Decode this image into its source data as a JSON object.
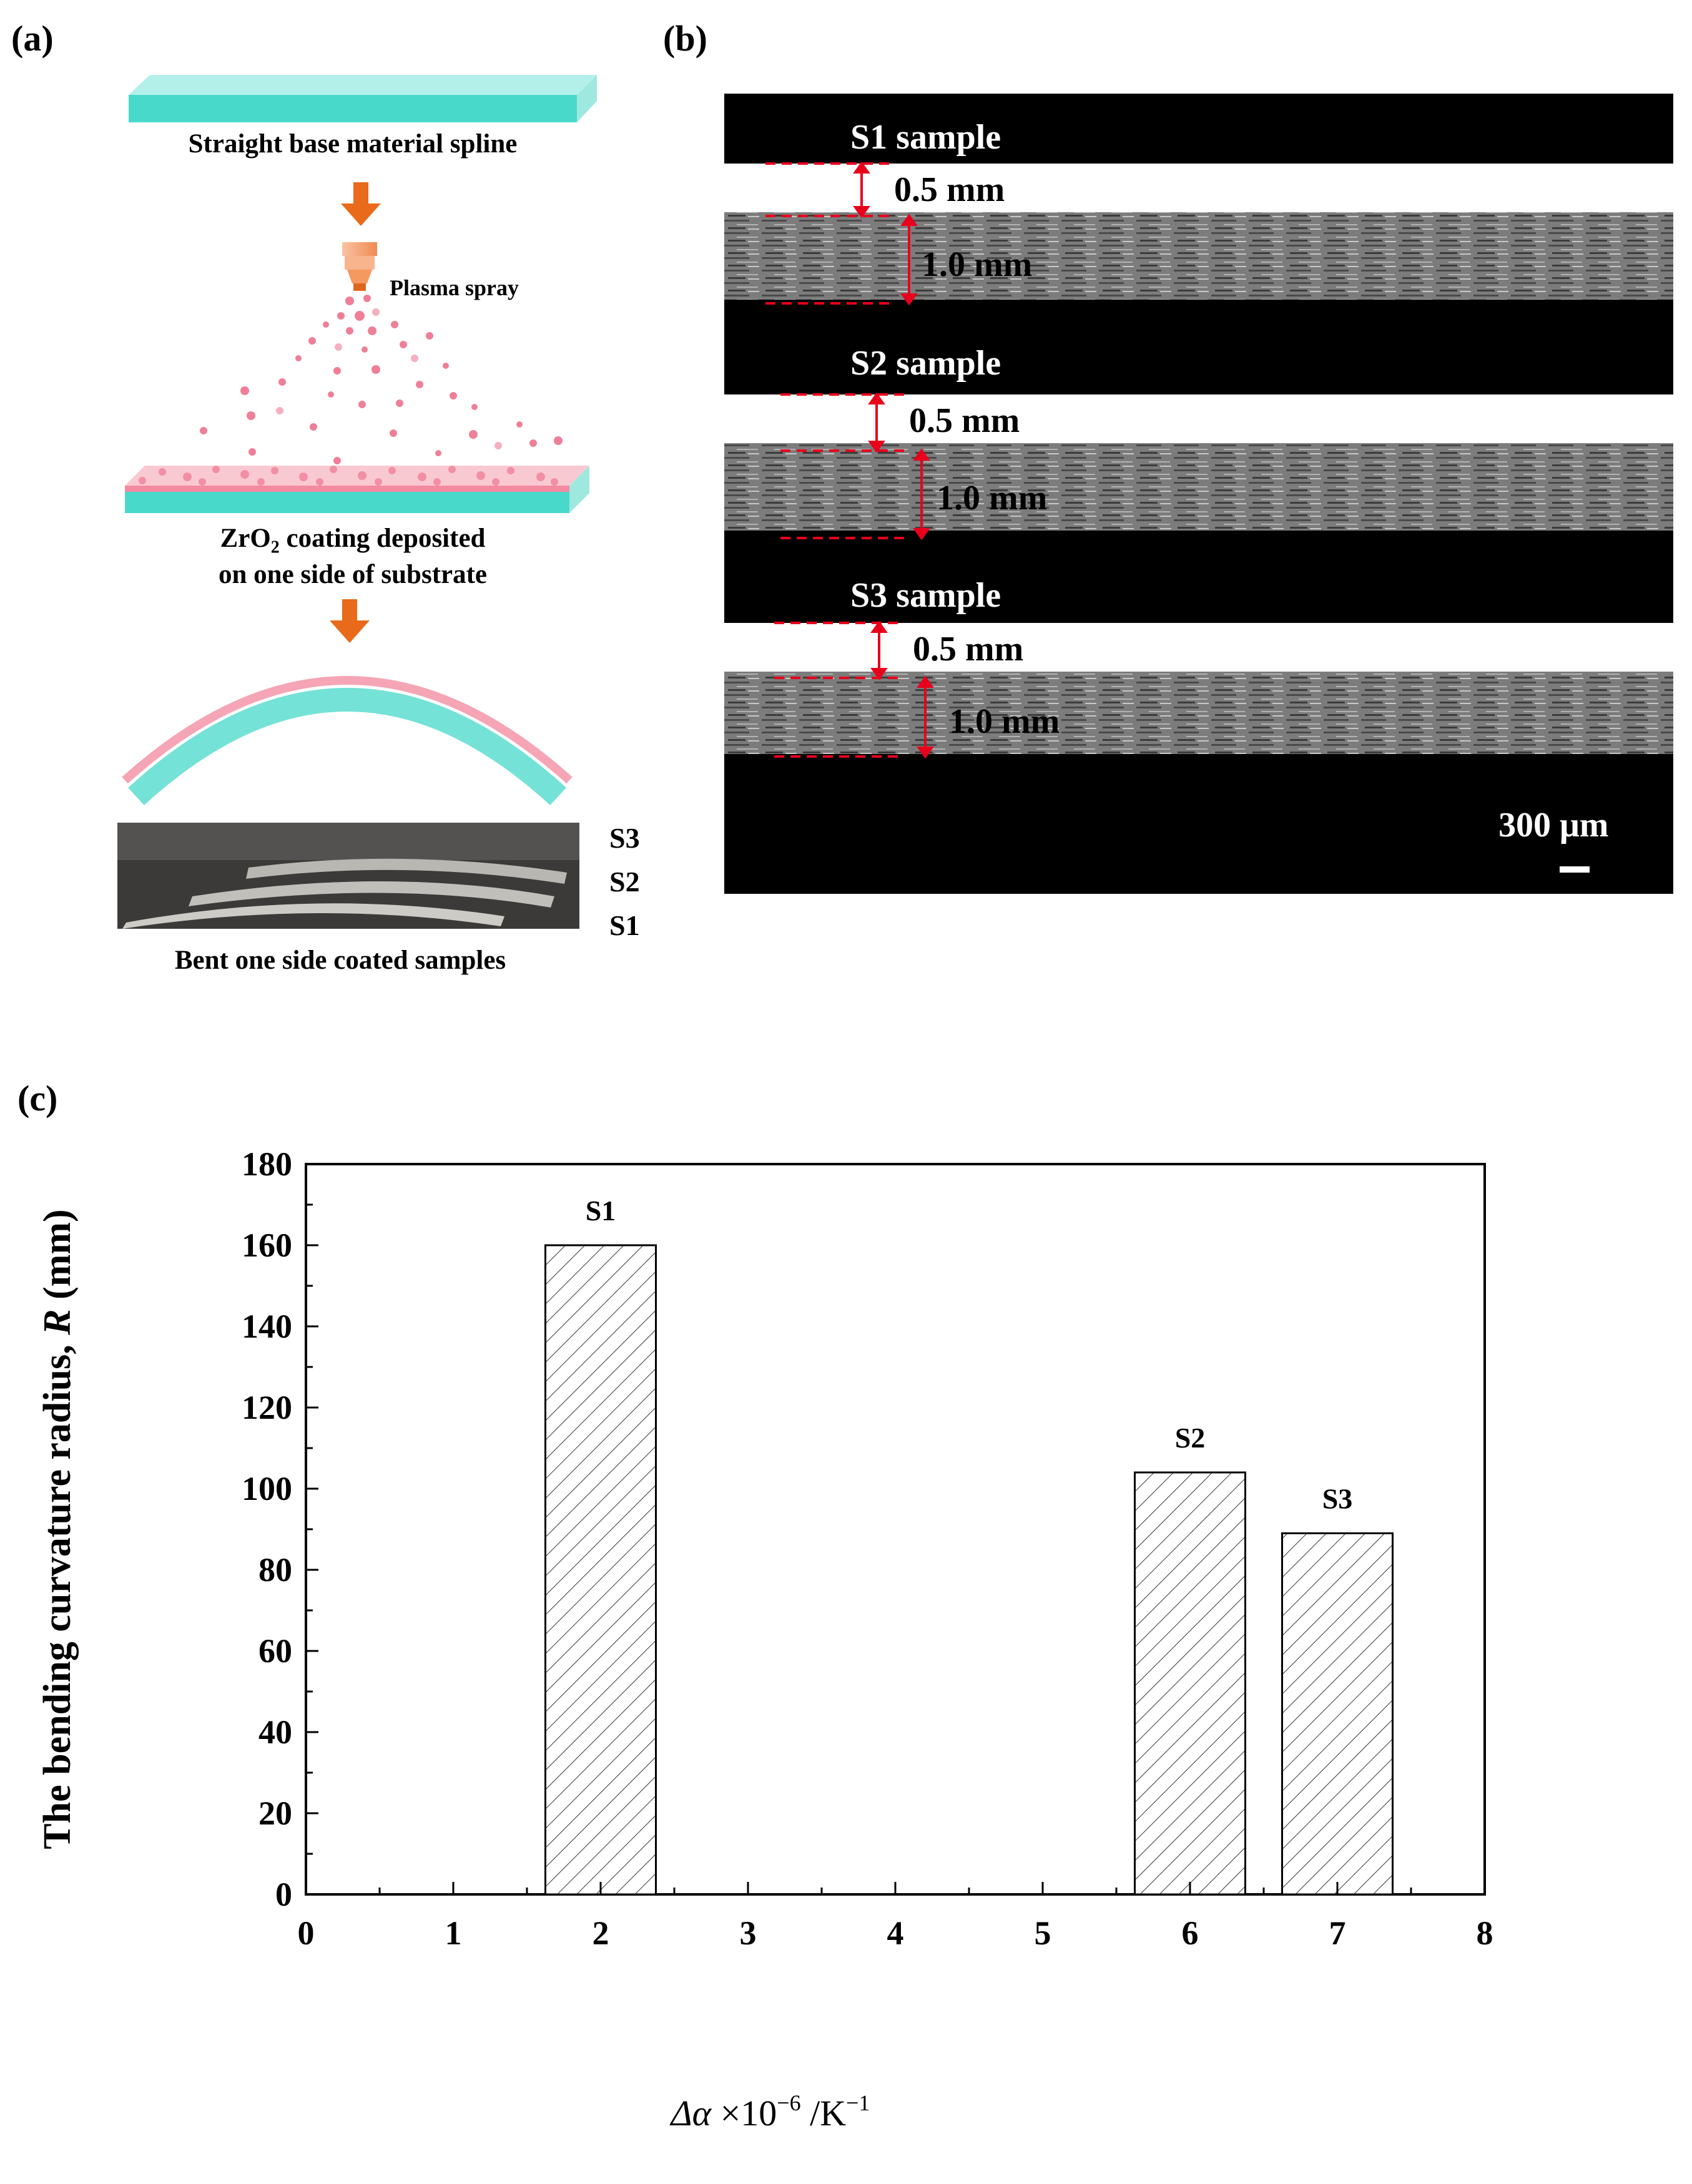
{
  "panels": {
    "a": {
      "label": "(a)",
      "step1": "Straight base material spline",
      "spray": "Plasma spray",
      "step2_main": "ZrO",
      "step2_sub": "2",
      "step2_rest": " coating deposited",
      "step2_line2": "on one side of substrate",
      "photo_labels": [
        "S3",
        "S2",
        "S1"
      ],
      "step4": "Bent one side coated samples"
    },
    "b": {
      "label": "(b)",
      "samples": [
        {
          "name": "S1 sample",
          "coating": "0.5 mm",
          "substrate": "1.0 mm"
        },
        {
          "name": "S2 sample",
          "coating": "0.5 mm",
          "substrate": "1.0 mm"
        },
        {
          "name": "S3 sample",
          "coating": "0.5 mm",
          "substrate": "1.0 mm"
        }
      ],
      "scale_bar": "300 μm"
    },
    "c": {
      "label": "(c)"
    }
  },
  "colors": {
    "substrate": "#8ee6dc",
    "substrate_dark": "#40d6c8",
    "coating": "#f6a3b3",
    "arrow": "#e86a1a",
    "dim_red": "#e8001c"
  },
  "chart_data": {
    "type": "bar",
    "x": [
      2,
      6,
      7
    ],
    "values": [
      160,
      104,
      89
    ],
    "bar_labels": [
      "S1",
      "S2",
      "S3"
    ],
    "xlabel_parts": [
      "Δα",
      " ×10",
      "−6",
      " /K",
      "−1"
    ],
    "ylabel_parts": [
      "The bending curvature radius, ",
      "R",
      " (mm)"
    ],
    "xlim": [
      0,
      8
    ],
    "ylim": [
      0,
      180
    ],
    "xticks": [
      0,
      1,
      2,
      3,
      4,
      5,
      6,
      7,
      8
    ],
    "yticks": [
      0,
      20,
      40,
      60,
      80,
      100,
      120,
      140,
      160,
      180
    ],
    "fill": "diagonal hatch",
    "grid": false
  }
}
